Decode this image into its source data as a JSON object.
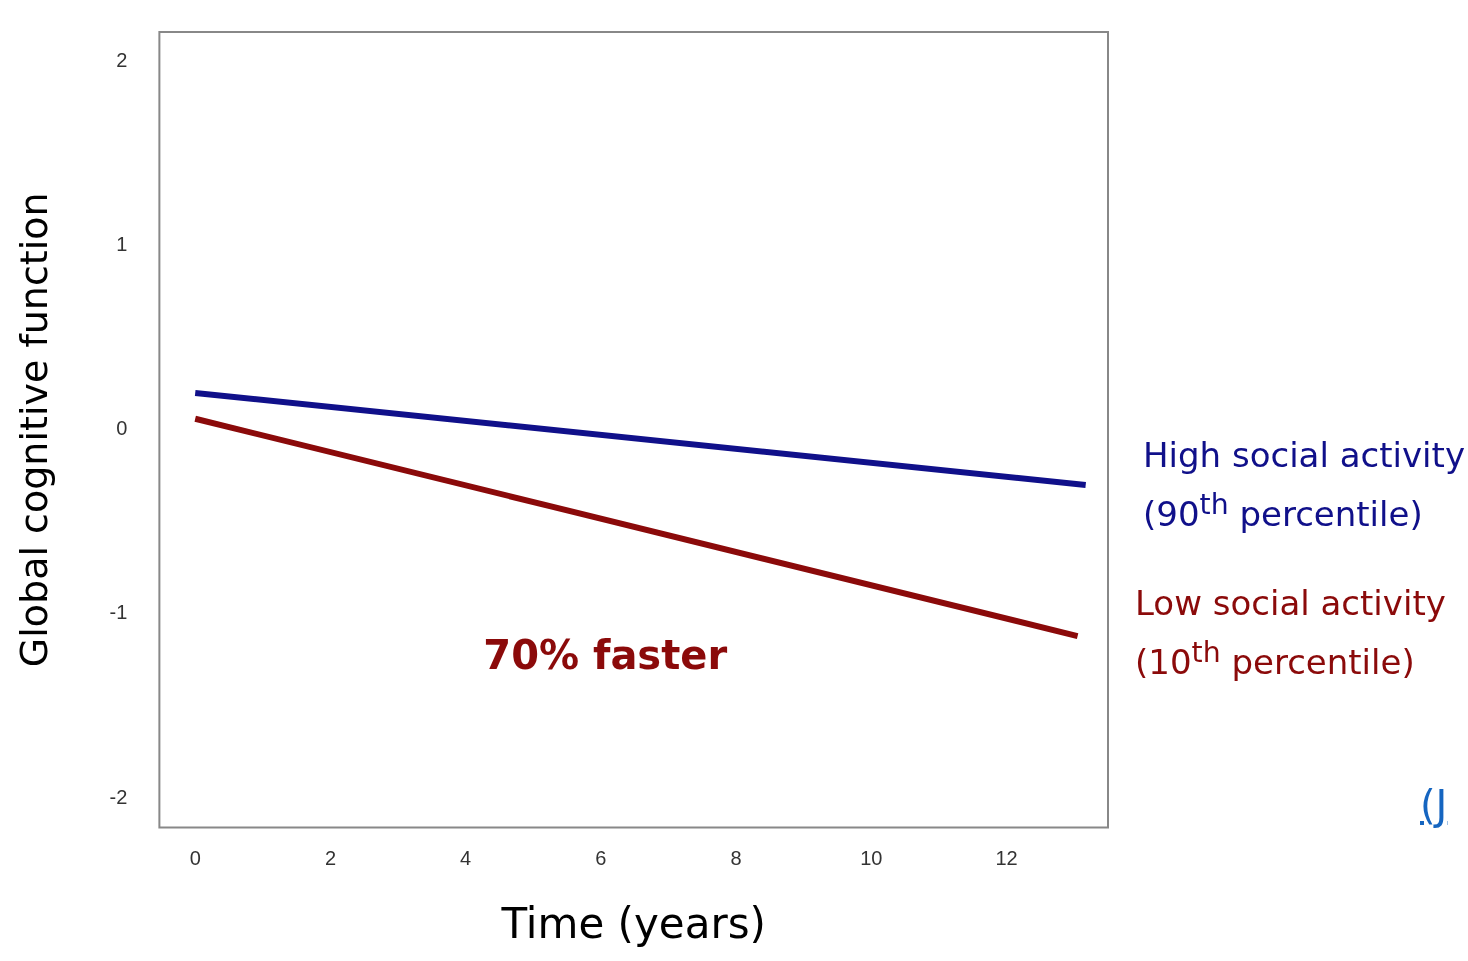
{
  "chart_data": {
    "type": "line",
    "xlabel": "Time (years)",
    "ylabel": "Global cognitive function",
    "xlim": [
      -0.53,
      13.5
    ],
    "xticks": [
      0,
      2,
      4,
      6,
      8,
      10,
      12
    ],
    "ylim": [
      -2.16,
      2.16
    ],
    "yticks": [
      -2,
      -1,
      0,
      1,
      2
    ],
    "grid": false,
    "legend": false,
    "marker": "none",
    "line_style": "solid",
    "series": [
      {
        "name": "High social activity (90$^{th}$ percentile)",
        "color": "#10108a",
        "x": [
          0,
          13.17
        ],
        "values": [
          0.2,
          -0.3
        ]
      },
      {
        "name": "Low social activity (10$^{th}$ percentile)",
        "color": "#8b0a0a",
        "x": [
          0,
          13.05
        ],
        "values": [
          0.06,
          -1.12
        ]
      }
    ],
    "annotations": [
      "70% faster",
      "(J"
    ]
  }
}
